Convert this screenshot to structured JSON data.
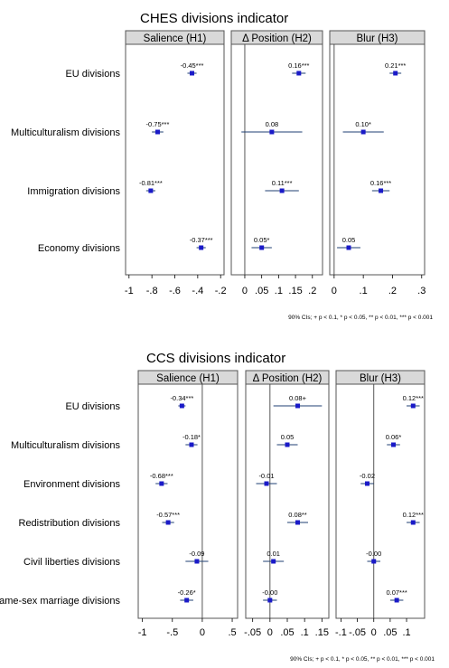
{
  "figures": [
    {
      "title": "CHES divisions indicator",
      "note": "90% CIs; + p < 0.1, * p < 0.05, ** p < 0.01, *** p < 0.001",
      "rows": [
        "EU divisions",
        "Multiculturalism divisions",
        "Immigration divisions",
        "Economy divisions"
      ]
    },
    {
      "title": "CCS divisions indicator",
      "note": "90% CIs; + p < 0.1, * p < 0.05, ** p < 0.01, *** p < 0.001",
      "rows": [
        "EU divisions",
        "Multiculturalism divisions",
        "Environment divisions",
        "Redistribution divisions",
        "Civil liberties divisions",
        "Same-sex marriage divisions"
      ]
    }
  ],
  "chart_data": [
    {
      "type": "scatter",
      "title": "CHES divisions indicator",
      "categories": [
        "EU divisions",
        "Multiculturalism divisions",
        "Immigration divisions",
        "Economy divisions"
      ],
      "panels": [
        {
          "name": "Salience (H1)",
          "xlim": [
            -1.03,
            -0.17
          ],
          "ticks": [
            -1,
            -0.8,
            -0.6,
            -0.4,
            -0.2
          ],
          "tick_labels": [
            "-1",
            "-.8",
            "-.6",
            "-.4",
            "-.2"
          ],
          "estimates": [
            -0.45,
            -0.75,
            -0.81,
            -0.37
          ],
          "ci_low": [
            -0.49,
            -0.8,
            -0.85,
            -0.41
          ],
          "ci_high": [
            -0.41,
            -0.7,
            -0.77,
            -0.33
          ],
          "labels": [
            "-0.45***",
            "-0.75***",
            "-0.81***",
            "-0.37***"
          ]
        },
        {
          "name": "Δ Position (H2)",
          "xlim": [
            -0.04,
            0.23
          ],
          "ticks": [
            0,
            0.05,
            0.1,
            0.15,
            0.2
          ],
          "tick_labels": [
            "0",
            ".05",
            ".1",
            ".15",
            ".2"
          ],
          "estimates": [
            0.16,
            0.08,
            0.11,
            0.05
          ],
          "ci_low": [
            0.14,
            -0.01,
            0.06,
            0.02
          ],
          "ci_high": [
            0.18,
            0.17,
            0.16,
            0.08
          ],
          "labels": [
            "0.16***",
            "0.08",
            "0.11***",
            "0.05*"
          ]
        },
        {
          "name": "Blur (H3)",
          "xlim": [
            -0.015,
            0.31
          ],
          "ticks": [
            0,
            0.1,
            0.2,
            0.3
          ],
          "tick_labels": [
            "0",
            ".1",
            ".2",
            ".3"
          ],
          "estimates": [
            0.21,
            0.1,
            0.16,
            0.05
          ],
          "ci_low": [
            0.19,
            0.03,
            0.13,
            0.01
          ],
          "ci_high": [
            0.23,
            0.17,
            0.19,
            0.09
          ],
          "labels": [
            "0.21***",
            "0.10*",
            "0.16***",
            "0.05"
          ]
        }
      ]
    },
    {
      "type": "scatter",
      "title": "CCS divisions indicator",
      "categories": [
        "EU divisions",
        "Multiculturalism divisions",
        "Environment divisions",
        "Redistribution divisions",
        "Civil liberties divisions",
        "Same-sex marriage divisions"
      ],
      "panels": [
        {
          "name": "Salience (H1)",
          "xlim": [
            -1.07,
            0.59
          ],
          "ticks": [
            -1,
            -0.5,
            0,
            0.5
          ],
          "tick_labels": [
            "-1",
            "-.5",
            "0",
            ".5"
          ],
          "estimates": [
            -0.34,
            -0.18,
            -0.68,
            -0.57,
            -0.09,
            -0.26
          ],
          "ci_low": [
            -0.4,
            -0.28,
            -0.78,
            -0.67,
            -0.28,
            -0.37
          ],
          "ci_high": [
            -0.28,
            -0.08,
            -0.58,
            -0.47,
            0.1,
            -0.15
          ],
          "labels": [
            "-0.34***",
            "-0.18*",
            "-0.68***",
            "-0.57***",
            "-0.09",
            "-0.26*"
          ]
        },
        {
          "name": "Δ Position (H2)",
          "xlim": [
            -0.07,
            0.17
          ],
          "ticks": [
            -0.05,
            0,
            0.05,
            0.1,
            0.15
          ],
          "tick_labels": [
            "-.05",
            "0",
            ".05",
            ".1",
            ".15"
          ],
          "estimates": [
            0.08,
            0.05,
            -0.01,
            0.08,
            0.01,
            -0.0
          ],
          "ci_low": [
            0.01,
            0.02,
            -0.04,
            0.05,
            -0.02,
            -0.02
          ],
          "ci_high": [
            0.15,
            0.08,
            0.02,
            0.11,
            0.04,
            0.02
          ],
          "labels": [
            "0.08+",
            "0.05",
            "-0.01",
            "0.08**",
            "0.01",
            "-0.00"
          ]
        },
        {
          "name": "Blur (H3)",
          "xlim": [
            -0.115,
            0.155
          ],
          "ticks": [
            -0.1,
            -0.05,
            0,
            0.05,
            0.1
          ],
          "tick_labels": [
            "-.1",
            "-.05",
            "0",
            ".05",
            ".1"
          ],
          "estimates": [
            0.12,
            0.06,
            -0.02,
            0.12,
            -0.0,
            0.07
          ],
          "ci_low": [
            0.1,
            0.04,
            -0.04,
            0.1,
            -0.02,
            0.05
          ],
          "ci_high": [
            0.14,
            0.08,
            0.0,
            0.14,
            0.02,
            0.09
          ],
          "labels": [
            "0.12***",
            "0.06*",
            "-0.02",
            "0.12***",
            "-0.00",
            "0.07***"
          ]
        }
      ]
    }
  ],
  "colors": {
    "marker": "#1a1ac8",
    "ci_line": "#1f3f73",
    "strip_fill": "#d9d9d9",
    "panel_border": "#555555",
    "zero_line": "#444444"
  }
}
